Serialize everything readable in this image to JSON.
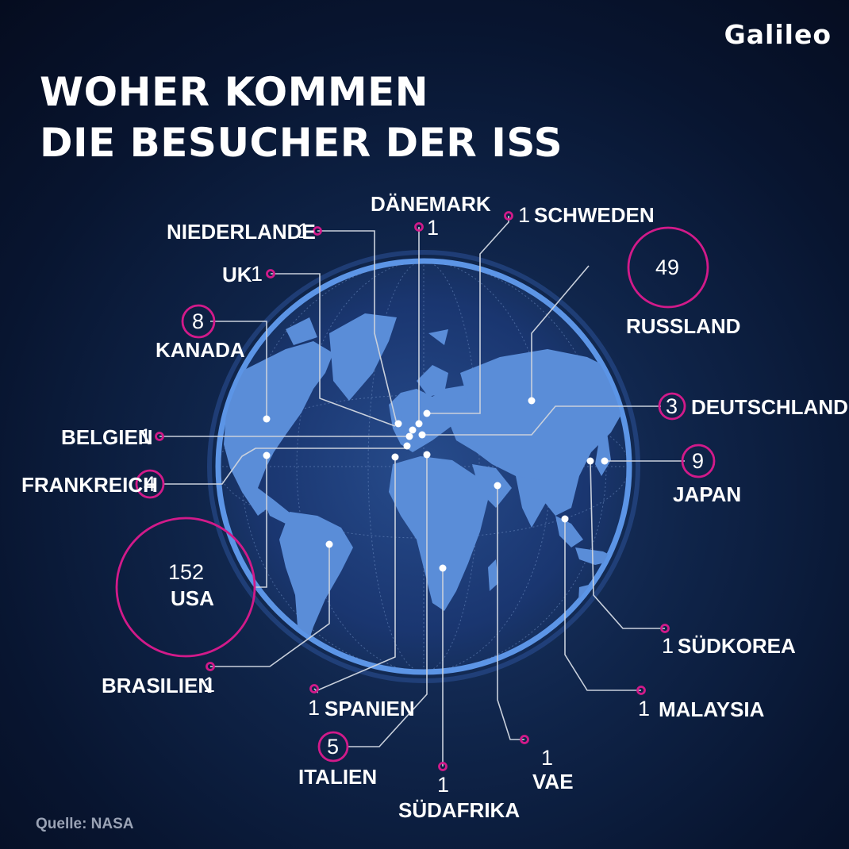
{
  "brand": "Galileo",
  "title_lines": [
    "WOHER KOMMEN",
    "DIE BESUCHER DER ISS"
  ],
  "source": "Quelle: NASA",
  "colors": {
    "background": "#0b1b3a",
    "globe_fill": "#3f6fbe",
    "globe_ring": "#4f86d8",
    "land": "#5b8ed8",
    "leader_line": "#c9d0dc",
    "circle_marker": "#d21a8a",
    "dot": "#ffffff",
    "text": "#ffffff"
  },
  "countries": [
    {
      "name": "USA",
      "count": "152"
    },
    {
      "name": "RUSSLAND",
      "count": "49"
    },
    {
      "name": "JAPAN",
      "count": "9"
    },
    {
      "name": "KANADA",
      "count": "8"
    },
    {
      "name": "ITALIEN",
      "count": "5"
    },
    {
      "name": "FRANKREICH",
      "count": "4"
    },
    {
      "name": "DEUTSCHLAND",
      "count": "3"
    },
    {
      "name": "DÄNEMARK",
      "count": "1"
    },
    {
      "name": "SCHWEDEN",
      "count": "1"
    },
    {
      "name": "NIEDERLANDE",
      "count": "1"
    },
    {
      "name": "UK",
      "count": "1"
    },
    {
      "name": "BELGIEN",
      "count": "1"
    },
    {
      "name": "BRASILIEN",
      "count": "1"
    },
    {
      "name": "SPANIEN",
      "count": "1"
    },
    {
      "name": "SÜDAFRIKA",
      "count": "1"
    },
    {
      "name": "VAE",
      "count": "1"
    },
    {
      "name": "MALAYSIA",
      "count": "1"
    },
    {
      "name": "SÜDKOREA",
      "count": "1"
    }
  ]
}
